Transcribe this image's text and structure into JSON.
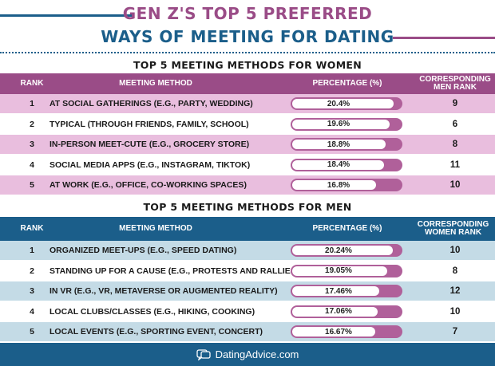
{
  "header": {
    "title_line1": "GEN Z'S TOP 5 PREFERRED",
    "title_line2": "WAYS OF MEETING FOR DATING"
  },
  "colors": {
    "purple": "#9a4c87",
    "purple_light": "#e9bede",
    "navy": "#1b5e8a",
    "blue_light": "#c4dbe6",
    "bar_fill_purple": "#b0609a"
  },
  "women_table": {
    "section_title": "TOP 5 MEETING METHODS FOR WOMEN",
    "headers": {
      "rank": "RANK",
      "method": "MEETING METHOD",
      "percentage": "PERCENTAGE (%)",
      "corresponding": "CORRESPONDING MEN RANK"
    }
  },
  "men_table": {
    "section_title": "TOP 5 MEETING METHODS FOR MEN",
    "headers": {
      "rank": "RANK",
      "method": "MEETING METHOD",
      "percentage": "PERCENTAGE (%)",
      "corresponding": "CORRESPONDING WOMEN RANK"
    }
  },
  "footer": {
    "brand": "DatingAdvice.com",
    "icon": "hearts-speech-icon"
  },
  "chart_data": [
    {
      "type": "table",
      "title": "TOP 5 MEETING METHODS FOR WOMEN",
      "columns": [
        "RANK",
        "MEETING METHOD",
        "PERCENTAGE (%)",
        "CORRESPONDING MEN RANK"
      ],
      "rows": [
        {
          "rank": "1",
          "method": "AT SOCIAL GATHERINGS (E.G., PARTY, WEDDING)",
          "value": 20.4,
          "label": "20.4%",
          "other_rank": "9"
        },
        {
          "rank": "2",
          "method": "TYPICAL (THROUGH FRIENDS, FAMILY, SCHOOL)",
          "value": 19.6,
          "label": "19.6%",
          "other_rank": "6"
        },
        {
          "rank": "3",
          "method": "IN-PERSON MEET-CUTE (E.G., GROCERY STORE)",
          "value": 18.8,
          "label": "18.8%",
          "other_rank": "8"
        },
        {
          "rank": "4",
          "method": "SOCIAL MEDIA APPS (E.G., INSTAGRAM, TIKTOK)",
          "value": 18.4,
          "label": "18.4%",
          "other_rank": "11"
        },
        {
          "rank": "5",
          "method": "AT WORK (E.G., OFFICE, CO-WORKING SPACES)",
          "value": 16.8,
          "label": "16.8%",
          "other_rank": "10"
        }
      ]
    },
    {
      "type": "table",
      "title": "TOP 5 MEETING METHODS FOR MEN",
      "columns": [
        "RANK",
        "MEETING METHOD",
        "PERCENTAGE (%)",
        "CORRESPONDING WOMEN RANK"
      ],
      "rows": [
        {
          "rank": "1",
          "method": "ORGANIZED MEET-UPS (E.G., SPEED DATING)",
          "value": 20.24,
          "label": "20.24%",
          "other_rank": "10"
        },
        {
          "rank": "2",
          "method": "STANDING UP FOR A CAUSE (E.G., PROTESTS AND RALLIES)",
          "value": 19.05,
          "label": "19.05%",
          "other_rank": "8"
        },
        {
          "rank": "3",
          "method": "IN VR (E.G., VR, METAVERSE OR AUGMENTED REALITY)",
          "value": 17.46,
          "label": "17.46%",
          "other_rank": "12"
        },
        {
          "rank": "4",
          "method": "LOCAL CLUBS/CLASSES (E.G., HIKING, COOKING)",
          "value": 17.06,
          "label": "17.06%",
          "other_rank": "10"
        },
        {
          "rank": "5",
          "method": "LOCAL EVENTS (E.G., SPORTING EVENT, CONCERT)",
          "value": 16.67,
          "label": "16.67%",
          "other_rank": "7"
        }
      ]
    }
  ]
}
